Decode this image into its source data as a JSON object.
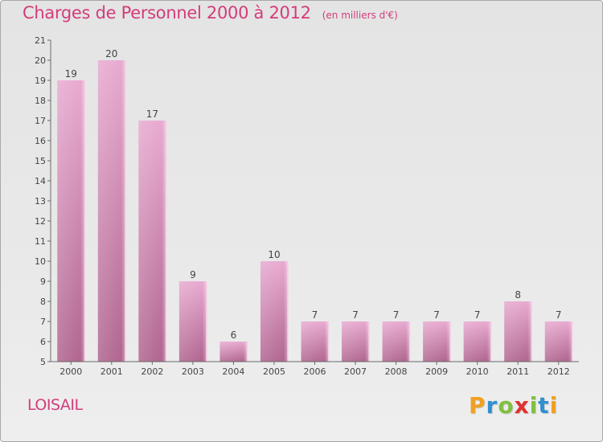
{
  "title": "Charges de Personnel 2000 à 2012",
  "subtitle": "(en milliers d'€)",
  "commune": "LOISAIL",
  "logo": {
    "letters": [
      "P",
      "r",
      "o",
      "x",
      "i",
      "t",
      "i"
    ],
    "colors": [
      "#f0a020",
      "#3090d0",
      "#80c040",
      "#e03030",
      "#80c040",
      "#3090d0",
      "#f0a020"
    ]
  },
  "colors": {
    "accent": "#d33c7a",
    "bar_top": "#e8aad0",
    "bar_bottom": "#b0658f"
  },
  "chart_data": {
    "type": "bar",
    "title": "Charges de Personnel 2000 à 2012",
    "subtitle": "(en milliers d'€)",
    "categories": [
      "2000",
      "2001",
      "2002",
      "2003",
      "2004",
      "2005",
      "2006",
      "2007",
      "2008",
      "2009",
      "2010",
      "2011",
      "2012"
    ],
    "values": [
      19,
      20,
      17,
      9,
      6,
      10,
      7,
      7,
      7,
      7,
      7,
      8,
      7
    ],
    "data_labels": [
      "19",
      "20",
      "17",
      "9",
      "6",
      "10",
      "7",
      "7",
      "7",
      "7",
      "7",
      "8",
      "7"
    ],
    "ylim": [
      5,
      21
    ],
    "yticks": [
      "5",
      "6",
      "7",
      "8",
      "9",
      "10",
      "11",
      "12",
      "13",
      "14",
      "15",
      "16",
      "17",
      "18",
      "19",
      "20",
      "21"
    ],
    "grid": false
  }
}
